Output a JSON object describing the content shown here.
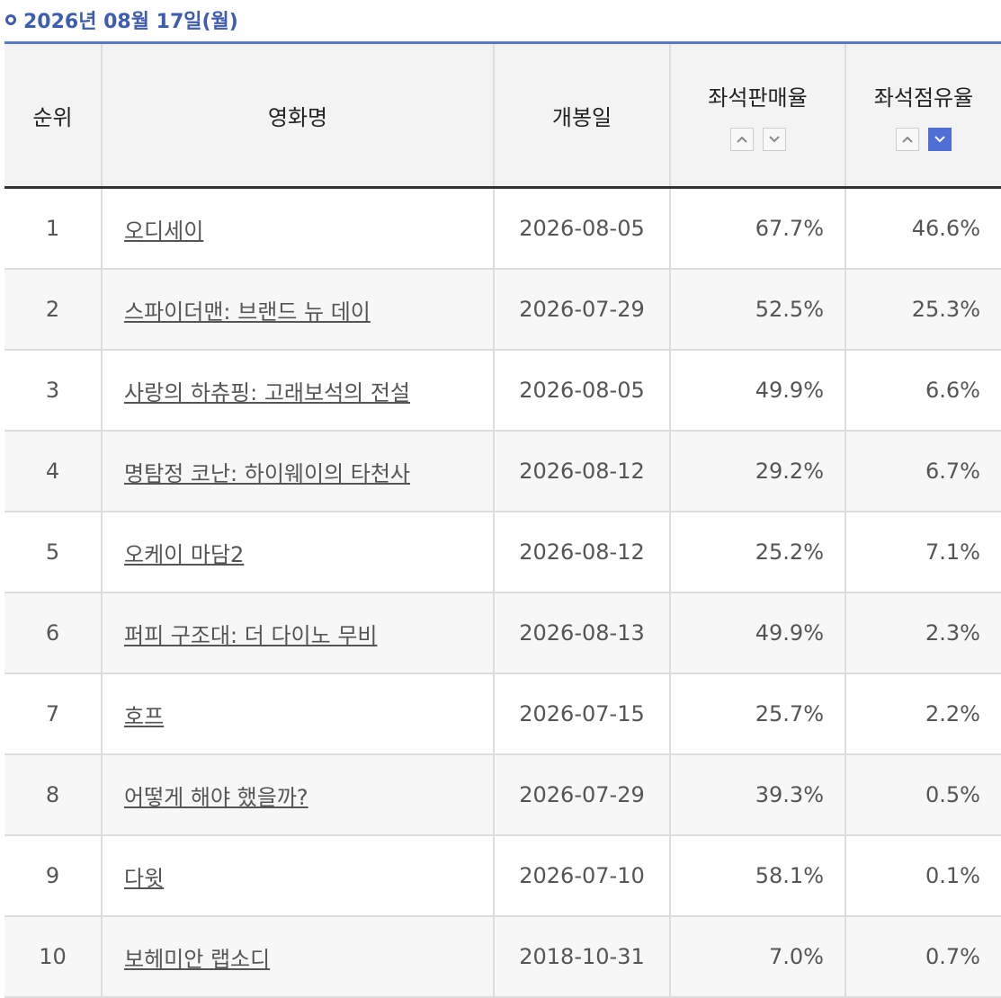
{
  "header": {
    "title": "2026년 08월 17일(월)"
  },
  "table": {
    "columns": [
      "순위",
      "영화명",
      "개봉일",
      "좌석판매율",
      "좌석점유율"
    ],
    "rows": [
      [
        "1",
        "오디세이",
        "2026-08-05",
        "67.7%",
        "46.6%"
      ],
      [
        "2",
        "스파이더맨: 브랜드 뉴 데이",
        "2026-07-29",
        "52.5%",
        "25.3%"
      ],
      [
        "3",
        "사랑의 하츄핑: 고래보석의 전설",
        "2026-08-05",
        "49.9%",
        "6.6%"
      ],
      [
        "4",
        "명탐정 코난: 하이웨이의 타천사",
        "2026-08-12",
        "29.2%",
        "6.7%"
      ],
      [
        "5",
        "오케이 마담2",
        "2026-08-12",
        "25.2%",
        "7.1%"
      ],
      [
        "6",
        "퍼피 구조대: 더 다이노 무비",
        "2026-08-13",
        "49.9%",
        "2.3%"
      ],
      [
        "7",
        "호프",
        "2026-07-15",
        "25.7%",
        "2.2%"
      ],
      [
        "8",
        "어떻게 해야 했을까?",
        "2026-07-29",
        "39.3%",
        "0.5%"
      ],
      [
        "9",
        "다윗",
        "2026-07-10",
        "58.1%",
        "0.1%"
      ],
      [
        "10",
        "보헤미안 랩소디",
        "2018-10-31",
        "7.0%",
        "0.7%"
      ]
    ]
  }
}
